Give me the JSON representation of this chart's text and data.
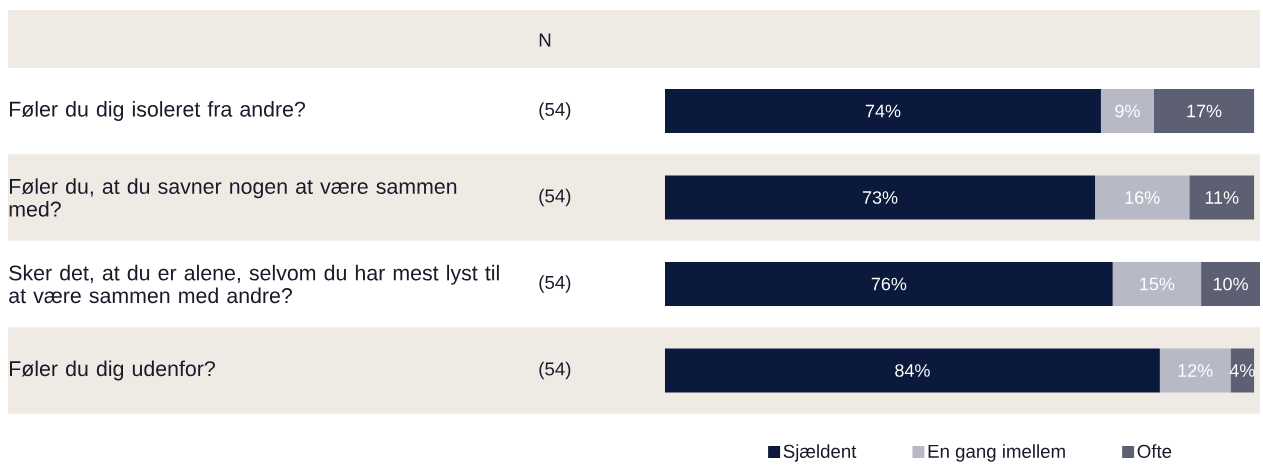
{
  "chart_data": {
    "type": "bar",
    "orientation": "horizontal",
    "stacked": true,
    "categories": [
      "Føler du dig isoleret fra andre?",
      "Føler du, at du savner nogen at være sammen med?",
      "Sker det, at du er alene, selvom du har mest lyst til at være sammen med andre?",
      "Føler du dig udenfor?"
    ],
    "series": [
      {
        "name": "Sjældent",
        "color": "#0b1a3c",
        "values": [
          74,
          73,
          76,
          84
        ],
        "value_labels": [
          "74%",
          "73%",
          "76%",
          "84%"
        ]
      },
      {
        "name": "En gang imellem",
        "color": "#b7b9c6",
        "values": [
          9,
          16,
          15,
          12
        ],
        "value_labels": [
          "9%",
          "16%",
          "15%",
          "12%"
        ]
      },
      {
        "name": "Ofte",
        "color": "#5c6072",
        "values": [
          17,
          11,
          10,
          4
        ],
        "value_labels": [
          "17%",
          "11%",
          "10%",
          "4%"
        ]
      }
    ],
    "tick_labels": "y",
    "legend": "bottom",
    "annotations": [
      "N",
      "(54)",
      "(54)",
      "(54)",
      "(54)"
    ]
  }
}
